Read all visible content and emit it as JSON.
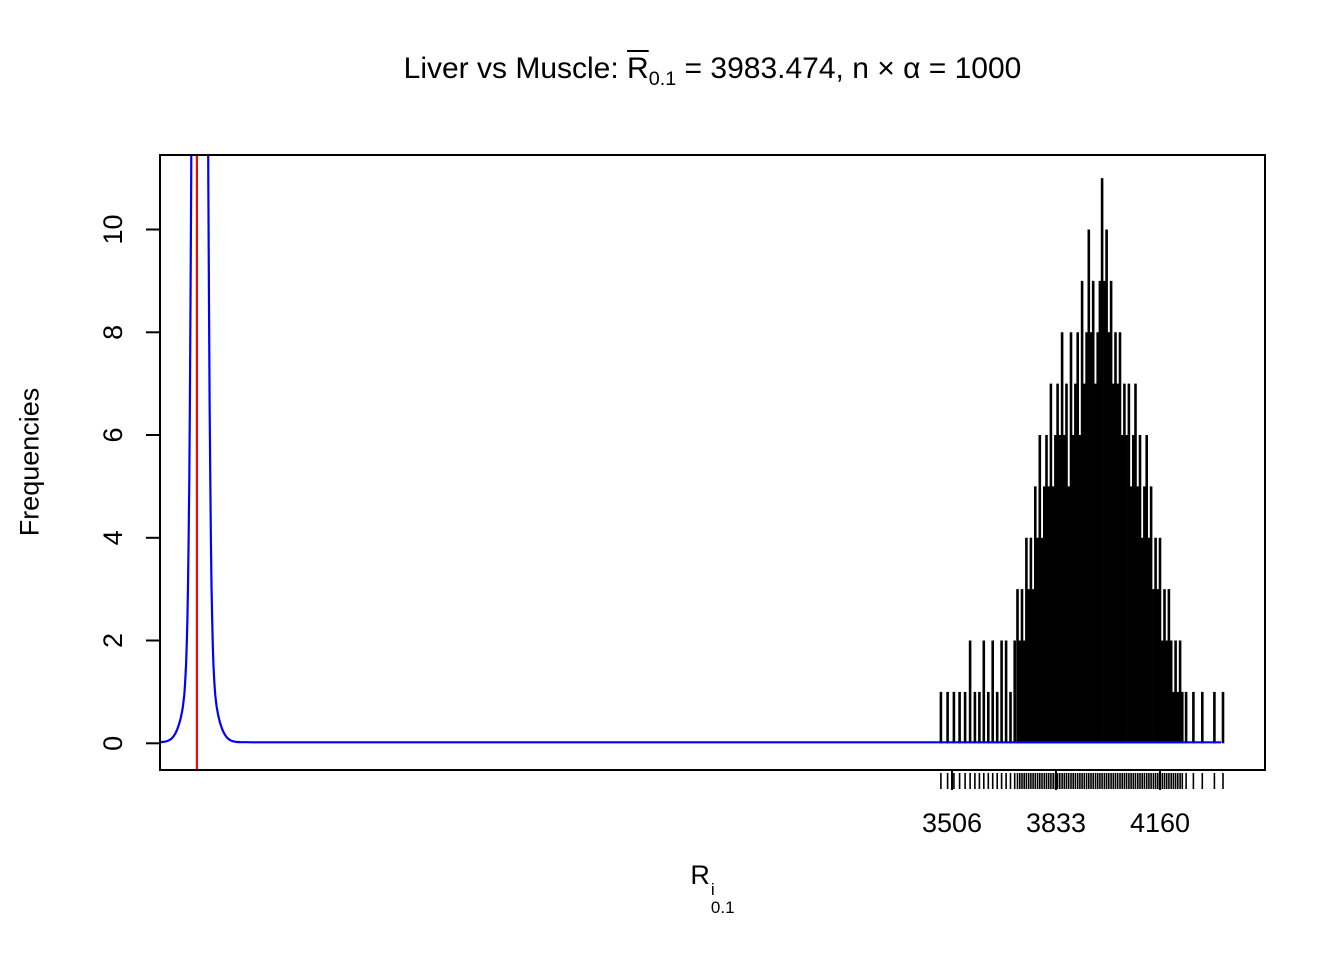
{
  "title": {
    "prefix": "Liver vs Muscle: ",
    "r_bar": "R",
    "r_sub": "0.1",
    "suffix": " = 3983.474, n × α = 1000"
  },
  "x_axis_label": {
    "base": "R",
    "sup": "i",
    "sub": "0.1"
  },
  "chart_data": {
    "type": "bar",
    "title": "Liver vs Muscle: R̄0.1 = 3983.474, n × α = 1000",
    "xlabel": "R^i_0.1",
    "ylabel": "Frequencies",
    "r_bar_mean": 3983.474,
    "n_times_alpha": 1000,
    "x_usr": [
      1016,
      4490
    ],
    "y_usr": [
      -0.52,
      11.45
    ],
    "x_ticks": [
      3506,
      3833,
      4160
    ],
    "y_ticks": [
      0,
      2,
      4,
      6,
      8,
      10
    ],
    "ylim": [
      0,
      11
    ],
    "grid": false,
    "colors": {
      "spikes": "#000000",
      "density": "#0000ff",
      "vline": "#ff0000",
      "axis": "#000000"
    },
    "spikes": [
      [
        3471,
        1
      ],
      [
        3492,
        1
      ],
      [
        3512,
        1
      ],
      [
        3530,
        1
      ],
      [
        3547,
        1
      ],
      [
        3563,
        2
      ],
      [
        3578,
        1
      ],
      [
        3592,
        1
      ],
      [
        3606,
        2
      ],
      [
        3620,
        1
      ],
      [
        3634,
        2
      ],
      [
        3648,
        1
      ],
      [
        3662,
        2
      ],
      [
        3676,
        2
      ],
      [
        3690,
        1
      ],
      [
        3703,
        2
      ],
      [
        3712,
        3
      ],
      [
        3719,
        2
      ],
      [
        3726,
        3
      ],
      [
        3733,
        2
      ],
      [
        3740,
        4
      ],
      [
        3747,
        3
      ],
      [
        3754,
        4
      ],
      [
        3761,
        3
      ],
      [
        3768,
        5
      ],
      [
        3775,
        4
      ],
      [
        3782,
        6
      ],
      [
        3789,
        4
      ],
      [
        3796,
        5
      ],
      [
        3803,
        6
      ],
      [
        3810,
        5
      ],
      [
        3817,
        7
      ],
      [
        3824,
        5
      ],
      [
        3831,
        6
      ],
      [
        3838,
        7
      ],
      [
        3845,
        6
      ],
      [
        3852,
        8
      ],
      [
        3859,
        6
      ],
      [
        3866,
        7
      ],
      [
        3873,
        5
      ],
      [
        3880,
        8
      ],
      [
        3887,
        6
      ],
      [
        3894,
        7
      ],
      [
        3901,
        8
      ],
      [
        3908,
        6
      ],
      [
        3915,
        9
      ],
      [
        3922,
        7
      ],
      [
        3929,
        8
      ],
      [
        3936,
        10
      ],
      [
        3943,
        8
      ],
      [
        3950,
        9
      ],
      [
        3957,
        7
      ],
      [
        3964,
        8
      ],
      [
        3971,
        9
      ],
      [
        3978,
        11
      ],
      [
        3985,
        9
      ],
      [
        3992,
        10
      ],
      [
        3999,
        8
      ],
      [
        4006,
        9
      ],
      [
        4013,
        7
      ],
      [
        4020,
        8
      ],
      [
        4027,
        7
      ],
      [
        4034,
        8
      ],
      [
        4041,
        6
      ],
      [
        4048,
        7
      ],
      [
        4055,
        6
      ],
      [
        4062,
        7
      ],
      [
        4069,
        5
      ],
      [
        4076,
        6
      ],
      [
        4083,
        7
      ],
      [
        4090,
        5
      ],
      [
        4097,
        6
      ],
      [
        4104,
        4
      ],
      [
        4111,
        5
      ],
      [
        4118,
        6
      ],
      [
        4125,
        4
      ],
      [
        4132,
        5
      ],
      [
        4139,
        3
      ],
      [
        4146,
        4
      ],
      [
        4153,
        3
      ],
      [
        4160,
        4
      ],
      [
        4167,
        2
      ],
      [
        4174,
        3
      ],
      [
        4181,
        2
      ],
      [
        4188,
        3
      ],
      [
        4195,
        2
      ],
      [
        4202,
        1
      ],
      [
        4209,
        2
      ],
      [
        4216,
        1
      ],
      [
        4223,
        2
      ],
      [
        4230,
        1
      ],
      [
        4242,
        1
      ],
      [
        4265,
        1
      ],
      [
        4293,
        1
      ],
      [
        4331,
        1
      ],
      [
        4358,
        1
      ]
    ],
    "density_curve": {
      "center": 1141,
      "components": [
        {
          "amp": 60,
          "sd": 14
        },
        {
          "amp": 2.2,
          "sd": 34
        }
      ],
      "baseline": 0.02,
      "x_start": 1016,
      "x_end": 4362
    },
    "red_vline_x": 1132
  }
}
